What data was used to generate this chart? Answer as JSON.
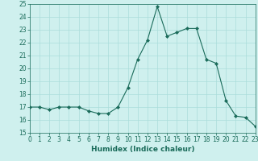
{
  "x": [
    0,
    1,
    2,
    3,
    4,
    5,
    6,
    7,
    8,
    9,
    10,
    11,
    12,
    13,
    14,
    15,
    16,
    17,
    18,
    19,
    20,
    21,
    22,
    23
  ],
  "y": [
    17,
    17,
    16.8,
    17,
    17,
    17,
    16.7,
    16.5,
    16.5,
    17,
    18.5,
    20.7,
    22.2,
    24.8,
    22.5,
    22.8,
    23.1,
    23.1,
    20.7,
    20.4,
    17.5,
    16.3,
    16.2,
    15.5
  ],
  "line_color": "#1a6b5a",
  "marker": "D",
  "marker_size": 2,
  "bg_color": "#cff0ee",
  "grid_color": "#aaddda",
  "xlabel": "Humidex (Indice chaleur)",
  "ylim": [
    15,
    25
  ],
  "xlim": [
    0,
    23
  ],
  "yticks": [
    15,
    16,
    17,
    18,
    19,
    20,
    21,
    22,
    23,
    24,
    25
  ],
  "xticks": [
    0,
    1,
    2,
    3,
    4,
    5,
    6,
    7,
    8,
    9,
    10,
    11,
    12,
    13,
    14,
    15,
    16,
    17,
    18,
    19,
    20,
    21,
    22,
    23
  ],
  "tick_color": "#1a6b5a",
  "label_fontsize": 6.5,
  "tick_fontsize": 5.5
}
